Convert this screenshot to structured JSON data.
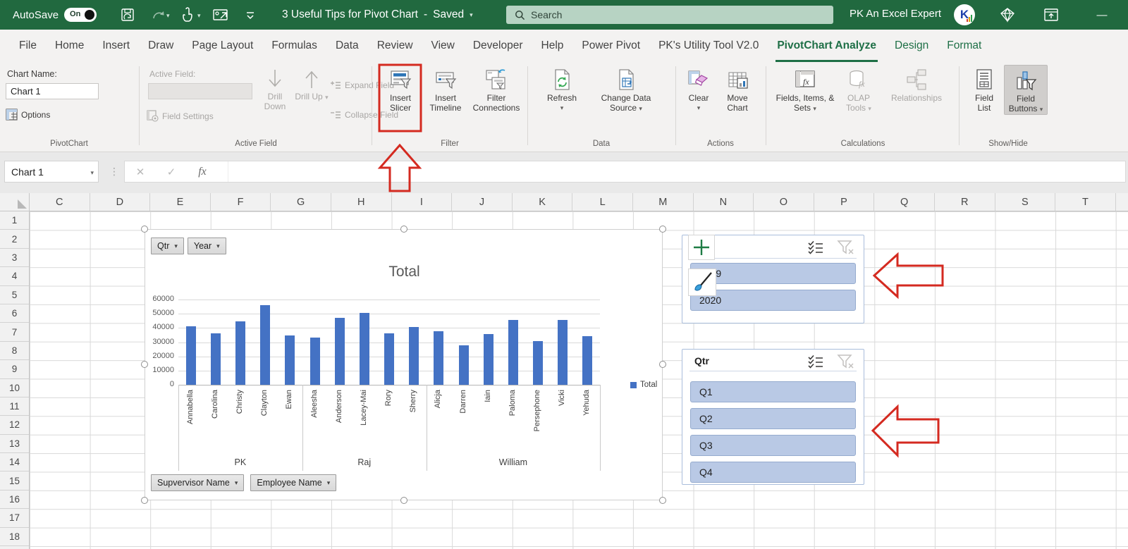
{
  "icons": {
    "dropdown": "▾",
    "minimize": "—",
    "more": "⋮",
    "cancel": "✕",
    "enter": "✓",
    "fx": "fx",
    "plus": "+",
    "minus": "−"
  },
  "titlebar": {
    "autosave_label": "AutoSave",
    "autosave_state": "On",
    "doc_title": "3 Useful Tips for Pivot Chart",
    "separator": "-",
    "doc_status": "Saved",
    "search_placeholder": "Search",
    "user_name": "PK An Excel Expert"
  },
  "menu": {
    "tabs": [
      {
        "label": "File"
      },
      {
        "label": "Home"
      },
      {
        "label": "Insert"
      },
      {
        "label": "Draw"
      },
      {
        "label": "Page Layout"
      },
      {
        "label": "Formulas"
      },
      {
        "label": "Data"
      },
      {
        "label": "Review"
      },
      {
        "label": "View"
      },
      {
        "label": "Developer"
      },
      {
        "label": "Help"
      },
      {
        "label": "Power Pivot"
      },
      {
        "label": "PK's Utility Tool V2.0"
      },
      {
        "label": "PivotChart Analyze",
        "state": "active"
      },
      {
        "label": "Design",
        "state": "contextual"
      },
      {
        "label": "Format",
        "state": "contextual"
      }
    ]
  },
  "ribbon": {
    "pivotchart": {
      "chart_name_label": "Chart Name:",
      "chart_name_value": "Chart 1",
      "options_label": "Options",
      "group_label": "PivotChart"
    },
    "active_field": {
      "field_label": "Active Field:",
      "field_settings_label": "Field Settings",
      "drill_down_label": "Drill Down",
      "drill_up_label": "Drill Up",
      "expand_label": "Expand Field",
      "collapse_label": "Collapse Field",
      "group_label": "Active Field"
    },
    "filter": {
      "insert_slicer_label": "Insert Slicer",
      "insert_timeline_label": "Insert Timeline",
      "filter_connections_label": "Filter Connections",
      "group_label": "Filter"
    },
    "data": {
      "refresh_label": "Refresh",
      "change_data_source_label": "Change Data Source",
      "group_label": "Data"
    },
    "actions": {
      "clear_label": "Clear",
      "move_chart_label": "Move Chart",
      "group_label": "Actions"
    },
    "calculations": {
      "fields_items_sets_label": "Fields, Items, & Sets",
      "olap_tools_label": "OLAP Tools",
      "relationships_label": "Relationships",
      "group_label": "Calculations"
    },
    "show_hide": {
      "field_list_label": "Field List",
      "field_buttons_label": "Field Buttons",
      "group_label": "Show/Hide"
    }
  },
  "formula_bar": {
    "name_box_value": "Chart 1"
  },
  "sheet": {
    "columns": [
      "C",
      "D",
      "E",
      "F",
      "G",
      "H",
      "I",
      "J",
      "K",
      "L",
      "M",
      "N",
      "O",
      "P",
      "Q",
      "R",
      "S",
      "T"
    ],
    "rows": [
      "1",
      "2",
      "3",
      "4",
      "5",
      "6",
      "7",
      "8",
      "9",
      "10",
      "11",
      "12",
      "13",
      "14",
      "15",
      "16",
      "17",
      "18"
    ]
  },
  "chart_data": {
    "type": "bar",
    "title": "Total",
    "legend_label": "Total",
    "ylim": [
      0,
      60000
    ],
    "ytick_step": 10000,
    "series_color": "#4472c4",
    "groups": [
      {
        "name": "PK",
        "employees": [
          "Annabella",
          "Carolina",
          "Christy",
          "Clayton",
          "Ewan"
        ]
      },
      {
        "name": "Raj",
        "employees": [
          "Aleesha",
          "Anderson",
          "Lacey-Mai",
          "Rory",
          "Sherry"
        ]
      },
      {
        "name": "William",
        "employees": [
          "Alicja",
          "Darren",
          "Iain",
          "Paloma",
          "Persephone",
          "Vicki",
          "Yehuda"
        ]
      }
    ],
    "values": [
      41000,
      36300,
      44900,
      56100,
      34900,
      33100,
      47200,
      50800,
      36000,
      40500,
      37700,
      27800,
      35500,
      45500,
      31000,
      45500,
      34300
    ],
    "field_buttons_top": [
      {
        "label": "Qtr"
      },
      {
        "label": "Year"
      }
    ],
    "field_buttons_bottom": [
      {
        "label": "Supvervisor Name"
      },
      {
        "label": "Employee Name"
      }
    ]
  },
  "slicers": {
    "year": {
      "title": "",
      "items": [
        {
          "label": "2019"
        },
        {
          "label": "2020"
        }
      ]
    },
    "qtr": {
      "title": "Qtr",
      "items": [
        {
          "label": "Q1"
        },
        {
          "label": "Q2"
        },
        {
          "label": "Q3"
        },
        {
          "label": "Q4"
        }
      ]
    }
  }
}
